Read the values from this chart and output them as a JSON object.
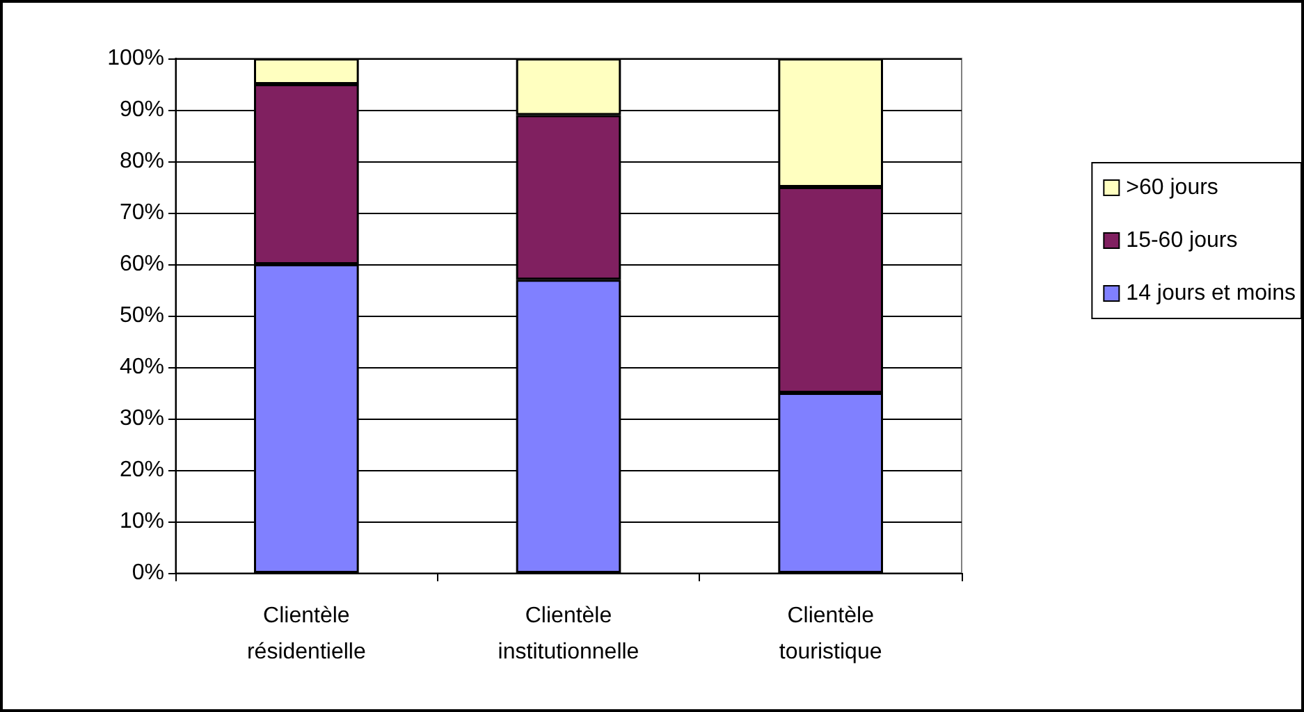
{
  "chart_data": {
    "type": "bar",
    "stacked": true,
    "categories": [
      "Clientèle\nrésidentielle",
      "Clientèle\ninstitutionnelle",
      "Clientèle\ntouristique"
    ],
    "series": [
      {
        "name": "14 jours et moins",
        "color": "#8080ff",
        "values": [
          60,
          57,
          35
        ]
      },
      {
        "name": "15-60 jours",
        "color": "#802060",
        "values": [
          35,
          32,
          40
        ]
      },
      {
        "name": ">60 jours",
        "color": "#ffffc0",
        "values": [
          5,
          11,
          25
        ]
      }
    ],
    "ylim": [
      0,
      100
    ],
    "yticks": [
      {
        "value": 0,
        "label": "0%"
      },
      {
        "value": 10,
        "label": "10%"
      },
      {
        "value": 20,
        "label": "20%"
      },
      {
        "value": 30,
        "label": "30%"
      },
      {
        "value": 40,
        "label": "40%"
      },
      {
        "value": 50,
        "label": "50%"
      },
      {
        "value": 60,
        "label": "60%"
      },
      {
        "value": 70,
        "label": "70%"
      },
      {
        "value": 80,
        "label": "80%"
      },
      {
        "value": 90,
        "label": "90%"
      },
      {
        "value": 100,
        "label": "100%"
      }
    ],
    "grid": "y",
    "legend": "right"
  }
}
